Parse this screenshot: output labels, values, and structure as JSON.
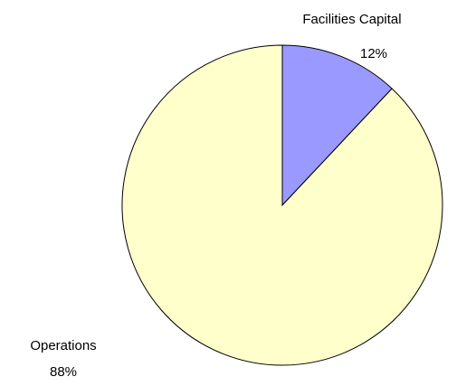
{
  "chart_data": {
    "type": "pie",
    "categories": [
      "Facilities Capital",
      "Operations"
    ],
    "values": [
      12,
      88
    ],
    "value_labels": [
      "12%",
      "88%"
    ],
    "colors": [
      "#9999ff",
      "#ffffcc"
    ]
  }
}
